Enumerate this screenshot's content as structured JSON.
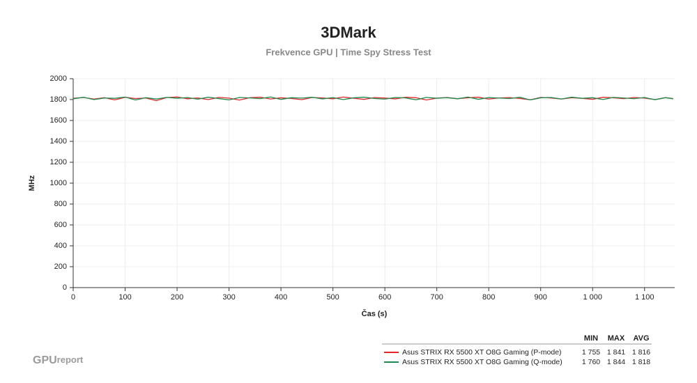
{
  "chart_data": {
    "type": "line",
    "title": "3DMark",
    "subtitle": "Frekvence GPU | Time Spy Stress Test",
    "x_label": "Čas (s)",
    "y_label": "MHz",
    "x": [
      0,
      20,
      40,
      60,
      80,
      100,
      120,
      140,
      160,
      180,
      200,
      220,
      240,
      260,
      280,
      300,
      320,
      340,
      360,
      380,
      400,
      420,
      440,
      460,
      480,
      500,
      520,
      540,
      560,
      580,
      600,
      620,
      640,
      660,
      680,
      700,
      720,
      740,
      760,
      780,
      800,
      820,
      840,
      860,
      880,
      900,
      920,
      940,
      960,
      980,
      1000,
      1020,
      1040,
      1060,
      1080,
      1100,
      1120,
      1140,
      1155
    ],
    "series": [
      {
        "name": "Asus STRIX RX 5500 XT O8G Gaming (P-mode)",
        "color": "#e3262b",
        "values": [
          1812,
          1820,
          1805,
          1818,
          1797,
          1822,
          1810,
          1815,
          1790,
          1819,
          1825,
          1808,
          1816,
          1800,
          1821,
          1814,
          1795,
          1818,
          1823,
          1806,
          1817,
          1811,
          1799,
          1820,
          1816,
          1808,
          1824,
          1813,
          1802,
          1819,
          1815,
          1807,
          1822,
          1818,
          1796,
          1814,
          1820,
          1809,
          1817,
          1823,
          1805,
          1816,
          1819,
          1811,
          1798,
          1821,
          1815,
          1806,
          1818,
          1812,
          1803,
          1822,
          1817,
          1809,
          1820,
          1814,
          1800,
          1819,
          1810
        ],
        "stats": [
          "1 755",
          "1 841",
          "1 816"
        ]
      },
      {
        "name": "Asus STRIX RX 5500 XT O8G Gaming (Q-mode)",
        "color": "#1b8a4c",
        "values": [
          1808,
          1822,
          1800,
          1815,
          1812,
          1824,
          1796,
          1818,
          1806,
          1821,
          1813,
          1819,
          1804,
          1823,
          1810,
          1797,
          1820,
          1816,
          1809,
          1825,
          1802,
          1818,
          1814,
          1822,
          1807,
          1819,
          1800,
          1817,
          1823,
          1811,
          1805,
          1820,
          1816,
          1798,
          1821,
          1813,
          1818,
          1808,
          1824,
          1803,
          1819,
          1815,
          1810,
          1822,
          1797,
          1817,
          1820,
          1806,
          1823,
          1812,
          1818,
          1801,
          1821,
          1815,
          1809,
          1820,
          1799,
          1818,
          1808
        ],
        "stats": [
          "1 760",
          "1 844",
          "1 818"
        ]
      }
    ],
    "stats_columns": [
      "MIN",
      "MAX",
      "AVG"
    ],
    "xlim": [
      0,
      1158
    ],
    "ylim": [
      0,
      2000
    ],
    "xticks": [
      0,
      100,
      200,
      300,
      400,
      500,
      600,
      700,
      800,
      900,
      {
        "value": 1000,
        "label": "1 000"
      },
      {
        "value": 1100,
        "label": "1 100"
      }
    ],
    "yticks": [
      0,
      200,
      400,
      600,
      800,
      1000,
      1200,
      1400,
      1600,
      1800,
      2000
    ],
    "grid": true,
    "logo": [
      "GPU",
      "report"
    ]
  }
}
